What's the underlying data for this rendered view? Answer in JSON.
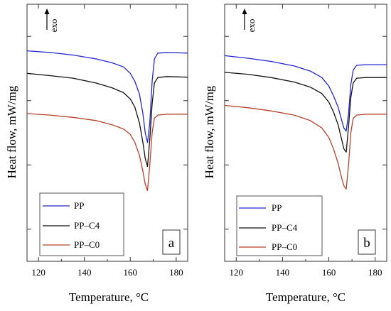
{
  "chart_data": [
    {
      "type": "line",
      "panel_label": "a",
      "exo_label": "exo",
      "xlabel": "Temperature, °C",
      "ylabel": "Heat flow, mW/mg",
      "xlim": [
        115,
        185
      ],
      "x_ticks": [
        120,
        140,
        160,
        180
      ],
      "y_tick_labels": "none",
      "ylim": [
        0,
        8
      ],
      "legend_position": "bottom-left",
      "series": [
        {
          "name": "PP",
          "color": "#2424d6",
          "points": [
            [
              115,
              6.55
            ],
            [
              125,
              6.5
            ],
            [
              135,
              6.42
            ],
            [
              145,
              6.3
            ],
            [
              152,
              6.18
            ],
            [
              157,
              6.05
            ],
            [
              160,
              5.85
            ],
            [
              162,
              5.6
            ],
            [
              164,
              5.2
            ],
            [
              165.5,
              4.6
            ],
            [
              166.5,
              4.0
            ],
            [
              167.5,
              3.7
            ],
            [
              168.5,
              4.3
            ],
            [
              169.5,
              5.6
            ],
            [
              170.5,
              6.3
            ],
            [
              172,
              6.48
            ],
            [
              176,
              6.5
            ],
            [
              185,
              6.48
            ]
          ]
        },
        {
          "name": "PP–C4",
          "color": "#111111",
          "points": [
            [
              115,
              5.85
            ],
            [
              125,
              5.78
            ],
            [
              135,
              5.7
            ],
            [
              145,
              5.55
            ],
            [
              152,
              5.4
            ],
            [
              157,
              5.25
            ],
            [
              160,
              5.05
            ],
            [
              162,
              4.8
            ],
            [
              164,
              4.3
            ],
            [
              165.5,
              3.7
            ],
            [
              166.5,
              3.2
            ],
            [
              167.5,
              2.95
            ],
            [
              168.5,
              3.8
            ],
            [
              169.5,
              4.9
            ],
            [
              170.5,
              5.55
            ],
            [
              172,
              5.72
            ],
            [
              176,
              5.75
            ],
            [
              185,
              5.73
            ]
          ]
        },
        {
          "name": "PP–C0",
          "color": "#b8412a",
          "points": [
            [
              115,
              4.6
            ],
            [
              125,
              4.55
            ],
            [
              135,
              4.48
            ],
            [
              145,
              4.38
            ],
            [
              152,
              4.25
            ],
            [
              157,
              4.12
            ],
            [
              160,
              3.95
            ],
            [
              162,
              3.7
            ],
            [
              164,
              3.3
            ],
            [
              165.5,
              2.8
            ],
            [
              166.5,
              2.4
            ],
            [
              167.5,
              2.2
            ],
            [
              168.5,
              3.0
            ],
            [
              169.5,
              4.0
            ],
            [
              170.5,
              4.45
            ],
            [
              172,
              4.55
            ],
            [
              176,
              4.58
            ],
            [
              185,
              4.58
            ]
          ]
        }
      ]
    },
    {
      "type": "line",
      "panel_label": "b",
      "exo_label": "exo",
      "xlabel": "Temperature, °C",
      "ylabel": "Heat flow, mW/mg",
      "xlim": [
        115,
        185
      ],
      "x_ticks": [
        120,
        140,
        160,
        180
      ],
      "y_tick_labels": "none",
      "ylim": [
        0,
        8
      ],
      "legend_position": "bottom-left",
      "series": [
        {
          "name": "PP",
          "color": "#2424d6",
          "points": [
            [
              115,
              6.4
            ],
            [
              125,
              6.32
            ],
            [
              135,
              6.22
            ],
            [
              145,
              6.08
            ],
            [
              152,
              5.92
            ],
            [
              157,
              5.72
            ],
            [
              160,
              5.45
            ],
            [
              162,
              5.15
            ],
            [
              164,
              4.8
            ],
            [
              165.5,
              4.4
            ],
            [
              166.5,
              4.15
            ],
            [
              167.5,
              4.05
            ],
            [
              168.5,
              4.6
            ],
            [
              169.5,
              5.5
            ],
            [
              170.5,
              5.95
            ],
            [
              172,
              6.1
            ],
            [
              176,
              6.12
            ],
            [
              185,
              6.12
            ]
          ]
        },
        {
          "name": "PP–C4",
          "color": "#111111",
          "points": [
            [
              115,
              5.88
            ],
            [
              125,
              5.82
            ],
            [
              135,
              5.72
            ],
            [
              145,
              5.58
            ],
            [
              152,
              5.42
            ],
            [
              157,
              5.22
            ],
            [
              160,
              4.95
            ],
            [
              162,
              4.65
            ],
            [
              164,
              4.25
            ],
            [
              165.5,
              3.8
            ],
            [
              166.5,
              3.5
            ],
            [
              167.5,
              3.4
            ],
            [
              168.5,
              4.2
            ],
            [
              169.5,
              5.1
            ],
            [
              170.5,
              5.55
            ],
            [
              172,
              5.7
            ],
            [
              176,
              5.72
            ],
            [
              185,
              5.72
            ]
          ]
        },
        {
          "name": "PP–C0",
          "color": "#b8412a",
          "points": [
            [
              115,
              4.85
            ],
            [
              125,
              4.78
            ],
            [
              135,
              4.68
            ],
            [
              145,
              4.55
            ],
            [
              152,
              4.38
            ],
            [
              157,
              4.15
            ],
            [
              160,
              3.85
            ],
            [
              162,
              3.5
            ],
            [
              164,
              3.05
            ],
            [
              165.5,
              2.6
            ],
            [
              166.5,
              2.35
            ],
            [
              167.5,
              2.25
            ],
            [
              168.5,
              3.0
            ],
            [
              169.5,
              4.0
            ],
            [
              170.5,
              4.45
            ],
            [
              172,
              4.55
            ],
            [
              176,
              4.58
            ],
            [
              185,
              4.58
            ]
          ]
        }
      ]
    }
  ]
}
